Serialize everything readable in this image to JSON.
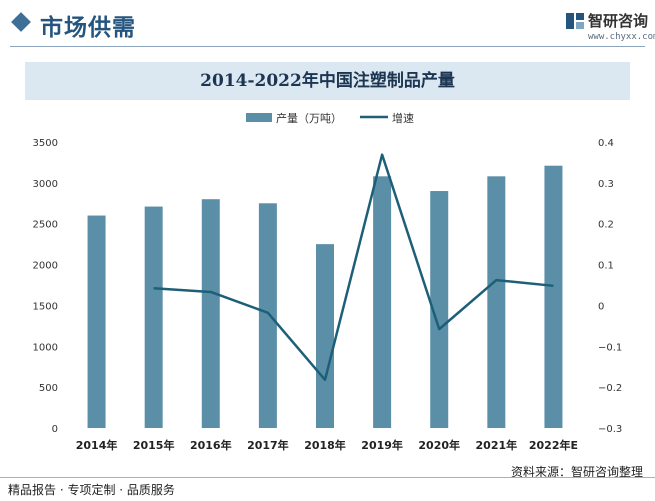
{
  "header": {
    "section_title": "市场供需",
    "brand_name": "智研咨询",
    "brand_url": "www.chyxx.com"
  },
  "chart_data": {
    "type": "bar",
    "title": "2014-2022年中国注塑制品产量",
    "categories": [
      "2014年",
      "2015年",
      "2016年",
      "2017年",
      "2018年",
      "2019年",
      "2020年",
      "2021年",
      "2022年E"
    ],
    "series": [
      {
        "name": "产量（万吨）",
        "type": "bar",
        "axis": "left",
        "values": [
          2600,
          2710,
          2800,
          2750,
          2250,
          3080,
          2900,
          3080,
          3210
        ]
      },
      {
        "name": "增速",
        "type": "line",
        "axis": "right",
        "values": [
          null,
          0.042,
          0.033,
          -0.018,
          -0.182,
          0.369,
          -0.058,
          0.062,
          0.048
        ]
      }
    ],
    "y_left": {
      "min": 0,
      "max": 3500,
      "ticks": [
        "0",
        "500",
        "1000",
        "1500",
        "2000",
        "2500",
        "3000",
        "3500"
      ]
    },
    "y_right": {
      "min": -0.3,
      "max": 0.4,
      "ticks": [
        "−0.3",
        "−0.2",
        "−0.1",
        "0",
        "0.1",
        "0.2",
        "0.3",
        "0.4"
      ]
    },
    "legend_position": "top-center",
    "grid": false,
    "colors": {
      "bar": "#5b8fa8",
      "line": "#1e5f78"
    }
  },
  "footer": {
    "left_text": "精品报告 · 专项定制 · 品质服务",
    "source_text": "资料来源：智研咨询整理"
  }
}
